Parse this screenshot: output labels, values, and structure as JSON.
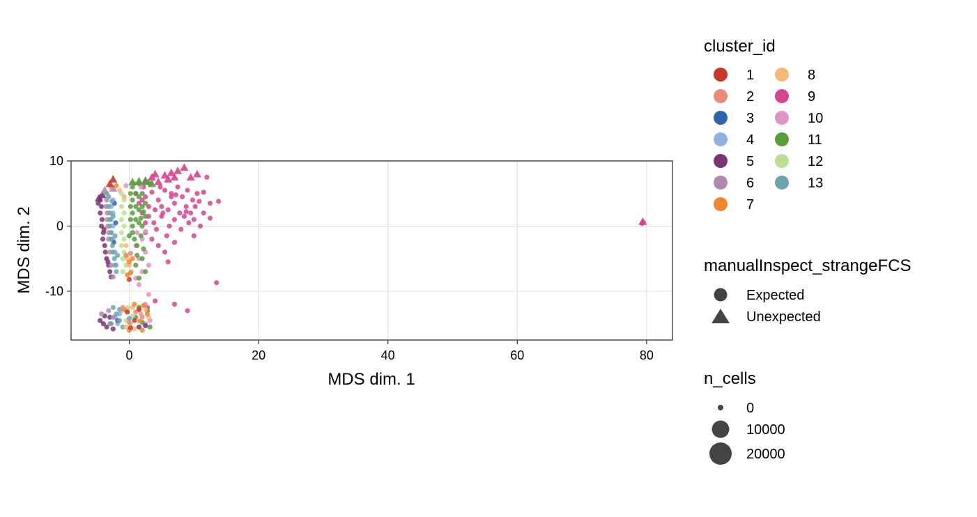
{
  "chart_data": {
    "type": "scatter",
    "xlabel": "MDS dim. 1",
    "ylabel": "MDS dim. 2",
    "xlim": [
      -9,
      84
    ],
    "ylim": [
      -17.5,
      10
    ],
    "x_ticks": [
      0,
      20,
      40,
      60,
      80
    ],
    "y_ticks": [
      10,
      0,
      -10
    ],
    "grid": true,
    "legend_placement": "right",
    "legends": [
      {
        "title": "cluster_id",
        "type": "color",
        "entries": [
          {
            "label": "1",
            "color": "#C8392C"
          },
          {
            "label": "2",
            "color": "#EB8A7A"
          },
          {
            "label": "3",
            "color": "#2F64A9"
          },
          {
            "label": "4",
            "color": "#8FB1DB"
          },
          {
            "label": "5",
            "color": "#7B3576"
          },
          {
            "label": "6",
            "color": "#B189B0"
          },
          {
            "label": "7",
            "color": "#EE8530"
          },
          {
            "label": "8",
            "color": "#F2BA78"
          },
          {
            "label": "9",
            "color": "#D5448E"
          },
          {
            "label": "10",
            "color": "#DE95C5"
          },
          {
            "label": "11",
            "color": "#579E3A"
          },
          {
            "label": "12",
            "color": "#BCDF94"
          },
          {
            "label": "13",
            "color": "#6EA4B0"
          }
        ]
      },
      {
        "title": "manualInspect_strangeFCS",
        "type": "shape",
        "entries": [
          {
            "label": "Expected",
            "shape": "circle"
          },
          {
            "label": "Unexpected",
            "shape": "triangle"
          }
        ]
      },
      {
        "title": "n_cells",
        "type": "size",
        "entries": [
          {
            "label": "0",
            "value": 0
          },
          {
            "label": "10000",
            "value": 10000
          },
          {
            "label": "20000",
            "value": 20000
          }
        ]
      }
    ],
    "series": [
      {
        "cluster": "9",
        "shape": "circle",
        "points": [
          [
            1,
            5
          ],
          [
            1.5,
            3.5
          ],
          [
            2,
            2
          ],
          [
            2.2,
            6
          ],
          [
            2.5,
            4.5
          ],
          [
            3,
            1.5
          ],
          [
            3,
            3
          ],
          [
            3.5,
            5.2
          ],
          [
            3.8,
            0.5
          ],
          [
            4,
            2.5
          ],
          [
            4.2,
            -0.5
          ],
          [
            4.5,
            4
          ],
          [
            5,
            1.5
          ],
          [
            5,
            3
          ],
          [
            5.5,
            5.5
          ],
          [
            5.8,
            -1.5
          ],
          [
            6,
            2.5
          ],
          [
            6.2,
            0
          ],
          [
            6.5,
            4.5
          ],
          [
            7,
            1
          ],
          [
            7,
            3.5
          ],
          [
            7.5,
            6
          ],
          [
            7.8,
            2
          ],
          [
            8,
            -0.5
          ],
          [
            8.2,
            4.5
          ],
          [
            8.5,
            1.5
          ],
          [
            8.8,
            3
          ],
          [
            9,
            5.5
          ],
          [
            9.2,
            0.5
          ],
          [
            9.5,
            2
          ],
          [
            9.8,
            4
          ],
          [
            10,
            1
          ],
          [
            10.2,
            3
          ],
          [
            10.5,
            5
          ],
          [
            11,
            0
          ],
          [
            11.5,
            2
          ],
          [
            12,
            7.5
          ],
          [
            12.5,
            3.5
          ],
          [
            13.8,
            3.8
          ],
          [
            2.5,
            -1
          ],
          [
            3.5,
            -2
          ],
          [
            4.5,
            -3
          ],
          [
            5.5,
            -4
          ],
          [
            6,
            -5.5
          ],
          [
            7,
            -2.5
          ],
          [
            13.5,
            -8.7
          ],
          [
            2.8,
            -12.5
          ],
          [
            4,
            -11.5
          ],
          [
            7,
            -12
          ],
          [
            9,
            -13
          ],
          [
            6.5,
            5
          ],
          [
            4.8,
            6
          ],
          [
            3.2,
            6.5
          ],
          [
            8.8,
            2.2
          ],
          [
            10.8,
            3.8
          ],
          [
            2,
            4
          ],
          [
            2.5,
            0.5
          ],
          [
            5.2,
            2
          ],
          [
            7.2,
            4.8
          ],
          [
            11.5,
            5.2
          ],
          [
            12.5,
            1.2
          ],
          [
            10,
            -1.5
          ],
          [
            79.5,
            0.6
          ],
          [
            79.3,
            0.4
          ]
        ]
      },
      {
        "cluster": "9",
        "shape": "triangle",
        "points": [
          [
            2.5,
            7
          ],
          [
            3.5,
            7.5
          ],
          [
            4.5,
            6.8
          ],
          [
            5.5,
            7.8
          ],
          [
            6.5,
            8.2
          ],
          [
            7.5,
            8.5
          ],
          [
            8.5,
            9
          ],
          [
            9.5,
            7.5
          ],
          [
            10.5,
            8
          ],
          [
            6,
            7.2
          ],
          [
            4,
            8
          ],
          [
            7,
            7.5
          ],
          [
            79.4,
            0.7
          ]
        ]
      },
      {
        "cluster": "10",
        "shape": "circle",
        "points": [
          [
            1,
            -3
          ],
          [
            2,
            -2
          ],
          [
            2.5,
            -4
          ],
          [
            1.5,
            -5
          ],
          [
            3,
            -6
          ],
          [
            2,
            -7
          ],
          [
            1.5,
            -9
          ],
          [
            2.5,
            -12
          ],
          [
            1.8,
            -13.5
          ],
          [
            3.2,
            -14.5
          ],
          [
            2.5,
            -15
          ],
          [
            1.2,
            -1
          ],
          [
            2.5,
            -0.8
          ],
          [
            -0.5,
            6.2
          ],
          [
            0.8,
            6.5
          ],
          [
            1.8,
            6
          ],
          [
            1,
            -8
          ],
          [
            3,
            -10.5
          ]
        ]
      },
      {
        "cluster": "11",
        "shape": "circle",
        "points": [
          [
            0.5,
            0
          ],
          [
            0.5,
            2
          ],
          [
            0.5,
            4
          ],
          [
            0.5,
            6
          ],
          [
            1,
            1
          ],
          [
            1,
            3
          ],
          [
            1,
            5
          ],
          [
            1.5,
            0.5
          ],
          [
            1.5,
            2.5
          ],
          [
            1.5,
            4.5
          ],
          [
            1.5,
            6.5
          ],
          [
            2,
            0
          ],
          [
            2,
            3
          ],
          [
            2,
            5
          ],
          [
            2.5,
            1.5
          ],
          [
            2.5,
            3.5
          ],
          [
            0.8,
            -2
          ],
          [
            1.2,
            -3
          ],
          [
            0.5,
            -1
          ],
          [
            1.8,
            -1.5
          ],
          [
            2.2,
            -3.5
          ],
          [
            2,
            -5
          ],
          [
            2.5,
            -7
          ],
          [
            1.5,
            -8
          ],
          [
            0.2,
            1
          ],
          [
            0.2,
            3
          ],
          [
            0.2,
            5
          ],
          [
            1.8,
            1.2
          ],
          [
            2.2,
            2.2
          ],
          [
            0,
            -1.5
          ],
          [
            1.5,
            -12.5
          ],
          [
            2.8,
            -13
          ],
          [
            2,
            -14.8
          ],
          [
            3.2,
            -15.5
          ],
          [
            1,
            -14
          ],
          [
            2.8,
            6.8
          ],
          [
            1.2,
            -4.5
          ],
          [
            1,
            -6
          ]
        ]
      },
      {
        "cluster": "11",
        "shape": "triangle",
        "points": [
          [
            0.5,
            6.8
          ],
          [
            1.5,
            6.9
          ],
          [
            2.5,
            6.8
          ],
          [
            3.5,
            6.5
          ]
        ]
      },
      {
        "cluster": "12",
        "shape": "circle",
        "points": [
          [
            -1.2,
            5
          ],
          [
            -1.2,
            3
          ],
          [
            -1.2,
            1
          ],
          [
            -1.2,
            -1
          ],
          [
            -1.2,
            -3
          ],
          [
            -1,
            -5
          ],
          [
            -1,
            -7
          ],
          [
            -0.8,
            4
          ],
          [
            -0.8,
            2
          ],
          [
            -0.8,
            0
          ],
          [
            -0.8,
            -2
          ],
          [
            -0.8,
            -4
          ],
          [
            -0.5,
            -6
          ],
          [
            -1,
            -13
          ],
          [
            -0.5,
            -14.5
          ],
          [
            0.2,
            -15
          ],
          [
            -0.2,
            -12.5
          ],
          [
            0.5,
            -13.8
          ]
        ]
      },
      {
        "cluster": "4",
        "shape": "circle",
        "points": [
          [
            -2.5,
            4
          ],
          [
            -2.5,
            2
          ],
          [
            -2.5,
            0
          ],
          [
            -2.5,
            -2
          ],
          [
            -2.2,
            -4
          ],
          [
            -2,
            -6
          ],
          [
            -2.8,
            3
          ],
          [
            -2.8,
            1
          ],
          [
            -2.8,
            -1
          ],
          [
            -2.2,
            -14
          ],
          [
            -1.8,
            -15
          ],
          [
            -1.5,
            -13.5
          ]
        ]
      },
      {
        "cluster": "3",
        "shape": "circle",
        "points": [
          [
            -2.3,
            3.5
          ],
          [
            -2.1,
            0.5
          ],
          [
            -2.4,
            -2.5
          ],
          [
            -1.8,
            -14.5
          ]
        ]
      },
      {
        "cluster": "5",
        "shape": "circle",
        "points": [
          [
            -4.5,
            4
          ],
          [
            -4.3,
            3
          ],
          [
            -4.5,
            2
          ],
          [
            -4.2,
            1
          ],
          [
            -4.3,
            0
          ],
          [
            -4,
            -1
          ],
          [
            -4.1,
            -2
          ],
          [
            -3.8,
            -3
          ],
          [
            -3.7,
            -4
          ],
          [
            -3.5,
            -5
          ],
          [
            -3.2,
            -6
          ],
          [
            -3,
            -7
          ],
          [
            -2.8,
            -7.8
          ],
          [
            -4.8,
            3.5
          ],
          [
            -3.9,
            -0.5
          ],
          [
            -3.3,
            -5.5
          ],
          [
            -4.5,
            -14.5
          ],
          [
            -4,
            -15
          ],
          [
            -3.5,
            -15.5
          ],
          [
            -3,
            -14
          ],
          [
            -2.5,
            -15.8
          ],
          [
            -3.8,
            -13.8
          ],
          [
            1.5,
            -15.5
          ],
          [
            2.5,
            -15.3
          ]
        ]
      },
      {
        "cluster": "5",
        "shape": "triangle",
        "points": [
          [
            -4.7,
            4.3
          ],
          [
            -4.2,
            4.8
          ]
        ]
      },
      {
        "cluster": "6",
        "shape": "circle",
        "points": [
          [
            -3.5,
            4
          ],
          [
            -3.4,
            2
          ],
          [
            -3.3,
            0
          ],
          [
            -3.2,
            -2
          ],
          [
            -3,
            -4
          ],
          [
            -2.8,
            -6
          ],
          [
            -2.5,
            -7.8
          ],
          [
            -3.6,
            3
          ],
          [
            -3.4,
            1
          ],
          [
            -3.2,
            -1
          ],
          [
            -3.2,
            -13
          ],
          [
            -2.5,
            -14
          ],
          [
            -3,
            -15
          ],
          [
            -4.3,
            -13.5
          ]
        ]
      },
      {
        "cluster": "6",
        "shape": "triangle",
        "points": [
          [
            -3.8,
            5.5
          ],
          [
            -2.5,
            5.8
          ]
        ]
      },
      {
        "cluster": "13",
        "shape": "circle",
        "points": [
          [
            -3.5,
            5
          ],
          [
            -3.2,
            4.5
          ],
          [
            -3.2,
            3
          ],
          [
            -3,
            2
          ],
          [
            -3,
            1
          ],
          [
            -3,
            0
          ],
          [
            -2.8,
            -1
          ],
          [
            -2.8,
            -2
          ],
          [
            -2.6,
            -3
          ],
          [
            -2.5,
            -4
          ],
          [
            -2.3,
            -5
          ],
          [
            -2.2,
            -6
          ],
          [
            -2,
            -7
          ],
          [
            -1.8,
            -4.5
          ],
          [
            -2.2,
            -1.5
          ],
          [
            -2.5,
            1.5
          ],
          [
            -2.7,
            3.8
          ],
          [
            -2.5,
            -12.5
          ],
          [
            -2,
            -13.5
          ],
          [
            -1.5,
            -14.5
          ],
          [
            -1,
            -15.5
          ],
          [
            -2.8,
            -15
          ],
          [
            -1.5,
            -12.8
          ],
          [
            0,
            -14.2
          ]
        ]
      },
      {
        "cluster": "8",
        "shape": "circle",
        "points": [
          [
            -0.5,
            -3
          ],
          [
            -0.3,
            -5
          ],
          [
            0,
            -6
          ],
          [
            0.3,
            -7
          ],
          [
            -0.8,
            4.5
          ],
          [
            -1.5,
            5.5
          ],
          [
            -0.3,
            -13
          ],
          [
            0.5,
            -12.5
          ],
          [
            1.5,
            -13
          ],
          [
            2.5,
            -12.8
          ],
          [
            3,
            -14
          ],
          [
            -0.5,
            -15.5
          ],
          [
            0.8,
            -15.8
          ]
        ]
      },
      {
        "cluster": "7",
        "shape": "circle",
        "points": [
          [
            -0.5,
            -4.5
          ],
          [
            0,
            -5.5
          ],
          [
            0.5,
            -5
          ],
          [
            0.2,
            -7.2
          ],
          [
            -2,
            6.2
          ],
          [
            -0.8,
            -12.8
          ],
          [
            0.8,
            -12
          ],
          [
            2.2,
            -12.2
          ],
          [
            2.8,
            -13.5
          ],
          [
            1.6,
            -14.6
          ],
          [
            0,
            -16
          ],
          [
            2,
            -16
          ],
          [
            -0.3,
            -7.5
          ]
        ]
      },
      {
        "cluster": "2",
        "shape": "circle",
        "points": [
          [
            -1,
            -12.5
          ],
          [
            1,
            -13.2
          ],
          [
            0,
            -14.8
          ],
          [
            2,
            -14
          ],
          [
            0.2,
            -4.2
          ],
          [
            -2.8,
            6
          ]
        ]
      },
      {
        "cluster": "1",
        "shape": "circle",
        "points": [
          [
            -0.3,
            -13.2
          ],
          [
            0.8,
            -14.5
          ],
          [
            1.5,
            -12.8
          ],
          [
            0.2,
            -15.6
          ],
          [
            0,
            -8.2
          ]
        ]
      },
      {
        "cluster": "1",
        "shape": "triangle",
        "points": [
          [
            -2.5,
            7.2
          ],
          [
            -3,
            6.5
          ]
        ]
      }
    ]
  }
}
